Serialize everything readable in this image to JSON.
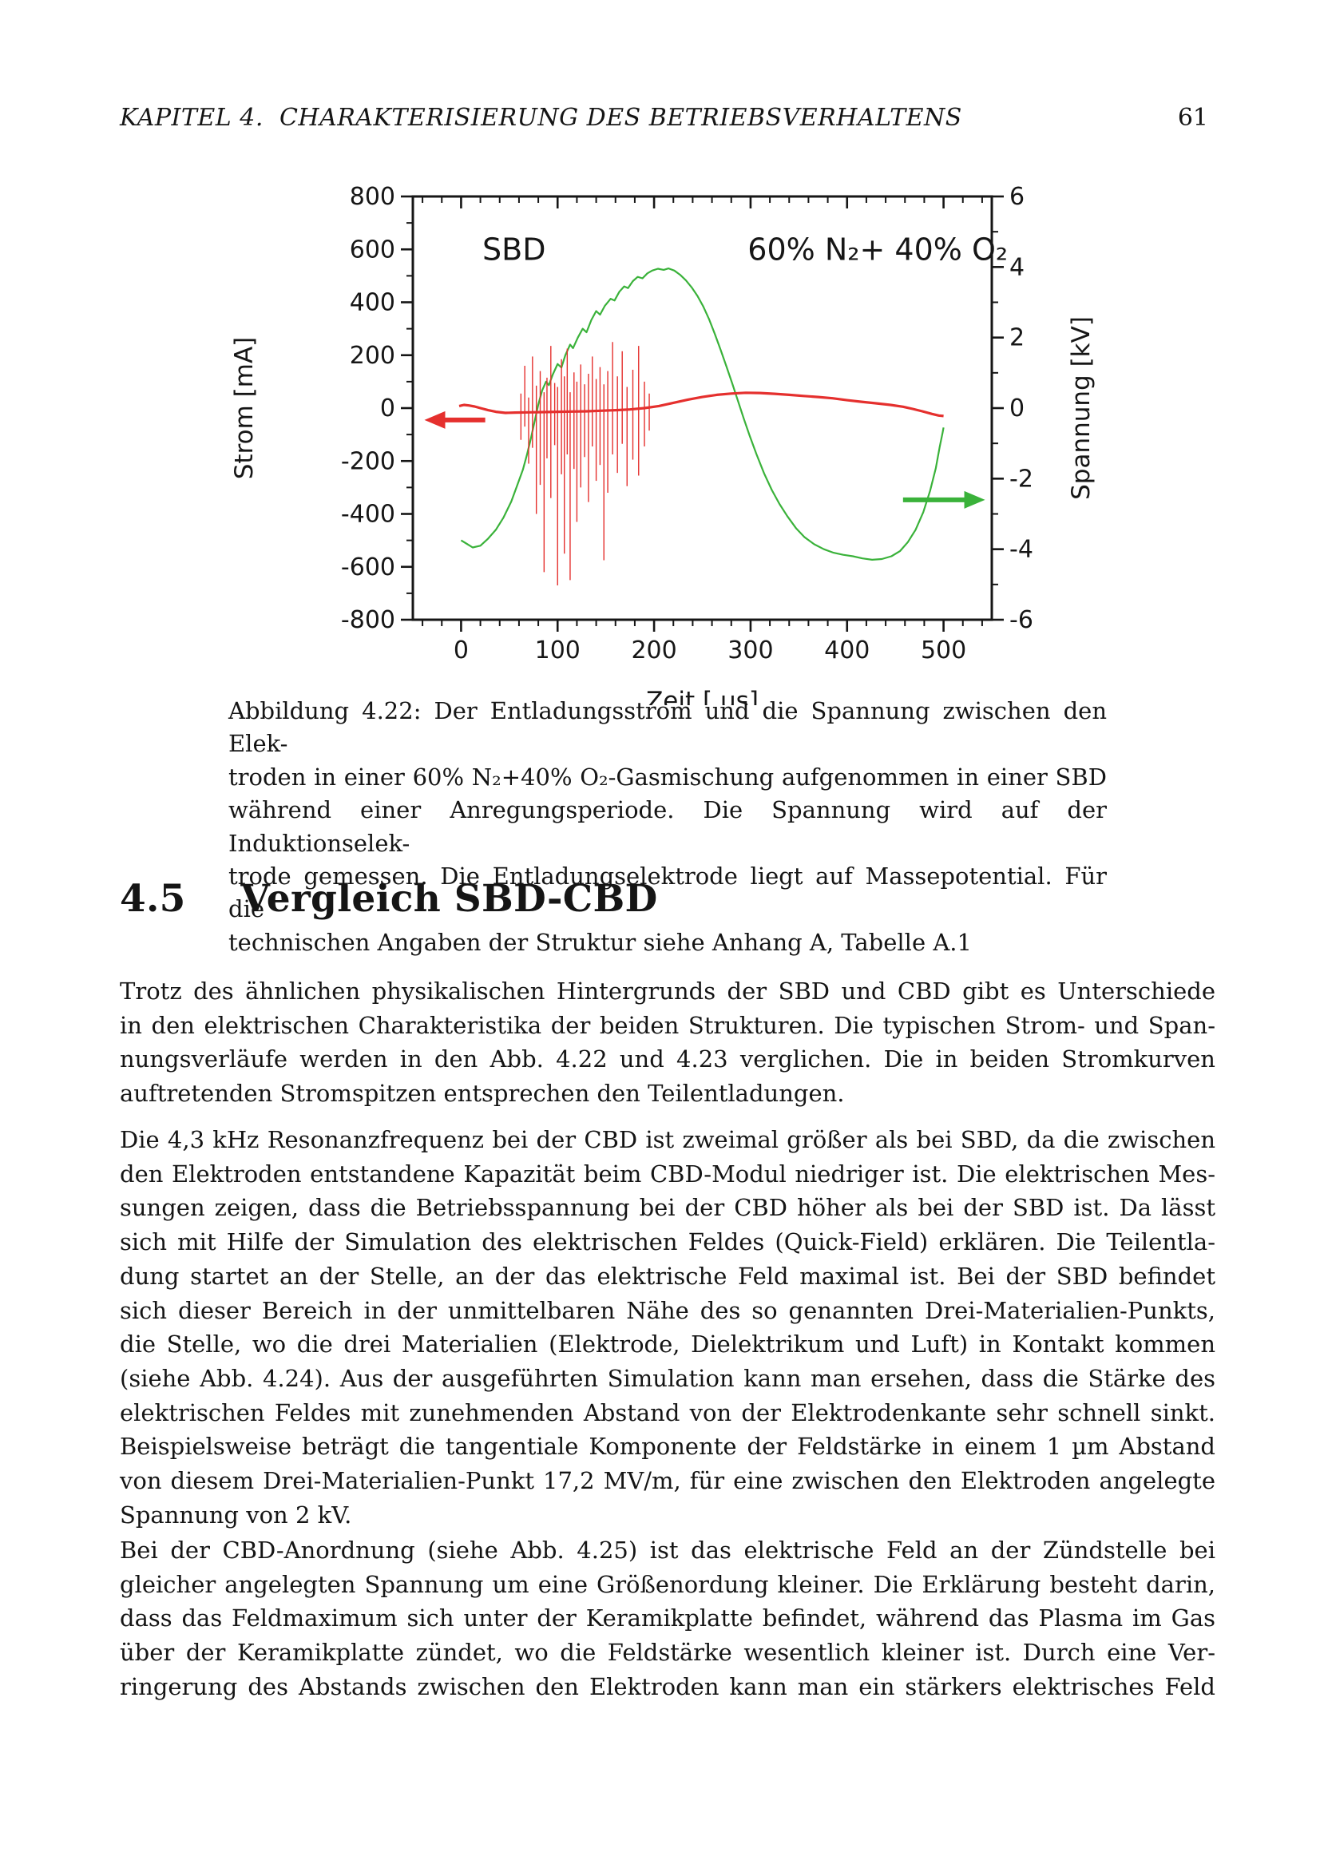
{
  "header": {
    "chapter": "KAPITEL 4.  CHARAKTERISIERUNG DES BETRIEBSVERHALTENS",
    "page_number": "61"
  },
  "figure": {
    "caption": {
      "short_last_line": true,
      "lines": [
        "Abbildung 4.22: Der Entladungsstrom und die Spannung zwischen den Elek-",
        "troden in einer 60% N₂+40% O₂-Gasmischung aufgenommen in einer SBD",
        "während einer Anregungsperiode. Die Spannung wird auf der Induktionselek-",
        "trode gemessen. Die Entladungselektrode liegt auf Massepotential. Für die",
        "technischen Angaben der Struktur siehe Anhang A, Tabelle A.1"
      ]
    }
  },
  "section": {
    "number": "4.5",
    "title": "Vergleich SBD-CBD"
  },
  "content": {
    "paragraphs": [
      {
        "short_last_line": true,
        "lines": [
          "Trotz des ähnlichen physikalischen Hintergrunds der SBD und CBD gibt es Unterschiede",
          "in den elektrischen Charakteristika der beiden Strukturen. Die typischen Strom- und Span-",
          "nungsverläufe werden in den Abb. 4.22 und 4.23 verglichen. Die in beiden Stromkurven",
          "auftretenden Stromspitzen entsprechen den Teilentladungen."
        ]
      },
      {
        "short_last_line": true,
        "lines": [
          "Die 4,3 kHz Resonanzfrequenz bei der CBD ist zweimal größer als bei SBD, da die zwischen",
          "den Elektroden entstandene Kapazität beim CBD-Modul niedriger ist. Die elektrischen Mes-",
          "sungen zeigen, dass die Betriebsspannung bei der CBD höher als bei der SBD ist. Da lässt",
          "sich mit Hilfe der Simulation des elektrischen Feldes (Quick-Field) erklären. Die Teilentla-",
          "dung startet an der Stelle, an der das elektrische Feld maximal ist. Bei der SBD befindet",
          "sich dieser Bereich in der unmittelbaren Nähe des so genannten Drei-Materialien-Punkts,",
          "die Stelle, wo die drei Materialien (Elektrode, Dielektrikum und Luft) in Kontakt kommen",
          "(siehe Abb. 4.24). Aus der ausgeführten Simulation kann man ersehen, dass die Stärke des",
          "elektrischen Feldes mit zunehmenden Abstand von der Elektrodenkante sehr schnell sinkt.",
          "Beispielsweise beträgt die tangentiale Komponente der Feldstärke in einem 1 µm Abstand",
          "von diesem Drei-Materialien-Punkt 17,2 MV/m, für eine zwischen den Elektroden angelegte",
          "Spannung von 2 kV."
        ]
      },
      {
        "short_last_line": false,
        "lines": [
          "Bei der CBD-Anordnung (siehe Abb. 4.25) ist das elektrische Feld an der Zündstelle bei",
          "gleicher angelegten Spannung um eine Größenordung kleiner. Die Erklärung besteht darin,",
          "dass das Feldmaximum sich unter der Keramikplatte befindet, während das Plasma im Gas",
          "über der Keramikplatte zündet, wo die Feldstärke wesentlich kleiner ist. Durch eine Ver-",
          "ringerung des Abstands zwischen den Elektroden kann man ein stärkers elektrisches Feld"
        ]
      }
    ]
  },
  "chart_data": {
    "type": "line",
    "title": "",
    "xlabel": "Zeit [ µs]",
    "ylabel_left": "Strom [mA]",
    "ylabel_right": "Spannung [kV]",
    "xlim": [
      -50,
      550
    ],
    "ylim_left": [
      -800,
      800
    ],
    "ylim_right": [
      -6,
      6
    ],
    "x_ticks": [
      0,
      100,
      200,
      300,
      400,
      500
    ],
    "x_minor_step": 20,
    "y_ticks_left": [
      -800,
      -600,
      -400,
      -200,
      0,
      200,
      400,
      600,
      800
    ],
    "y_minor_step_left": 100,
    "y_ticks_right": [
      -6,
      -4,
      -2,
      0,
      2,
      4,
      6
    ],
    "y_minor_step_right": 1,
    "grid": false,
    "legend": "none",
    "colors": {
      "current": "#e5302e",
      "voltage": "#3ab23a",
      "frame": "#161616"
    },
    "annotations": [
      {
        "text": "SBD",
        "t": 22,
        "v": 560
      },
      {
        "text": "60% N₂+ 40% O₂",
        "t": 297,
        "v": 560
      }
    ],
    "series": [
      {
        "name": "Spannung",
        "axis": "right",
        "color_key": "voltage",
        "width": 2.2,
        "points": [
          [
            0,
            -3.75
          ],
          [
            6,
            -3.85
          ],
          [
            12,
            -3.95
          ],
          [
            20,
            -3.9
          ],
          [
            28,
            -3.7
          ],
          [
            36,
            -3.45
          ],
          [
            44,
            -3.1
          ],
          [
            52,
            -2.65
          ],
          [
            58,
            -2.2
          ],
          [
            64,
            -1.75
          ],
          [
            68,
            -1.35
          ],
          [
            72,
            -0.9
          ],
          [
            76,
            -0.4
          ],
          [
            80,
            0.1
          ],
          [
            84,
            0.5
          ],
          [
            88,
            0.75
          ],
          [
            91,
            0.65
          ],
          [
            95,
            0.95
          ],
          [
            100,
            1.25
          ],
          [
            104,
            1.15
          ],
          [
            108,
            1.5
          ],
          [
            113,
            1.8
          ],
          [
            116,
            1.7
          ],
          [
            121,
            2.0
          ],
          [
            126,
            2.25
          ],
          [
            130,
            2.15
          ],
          [
            135,
            2.5
          ],
          [
            140,
            2.75
          ],
          [
            144,
            2.65
          ],
          [
            149,
            2.9
          ],
          [
            155,
            3.1
          ],
          [
            159,
            3.05
          ],
          [
            164,
            3.3
          ],
          [
            169,
            3.45
          ],
          [
            173,
            3.4
          ],
          [
            178,
            3.6
          ],
          [
            183,
            3.72
          ],
          [
            188,
            3.68
          ],
          [
            193,
            3.82
          ],
          [
            198,
            3.9
          ],
          [
            204,
            3.95
          ],
          [
            210,
            3.92
          ],
          [
            215,
            3.96
          ],
          [
            221,
            3.9
          ],
          [
            227,
            3.78
          ],
          [
            233,
            3.62
          ],
          [
            239,
            3.42
          ],
          [
            245,
            3.18
          ],
          [
            251,
            2.88
          ],
          [
            257,
            2.52
          ],
          [
            263,
            2.1
          ],
          [
            269,
            1.65
          ],
          [
            275,
            1.18
          ],
          [
            281,
            0.7
          ],
          [
            287,
            0.2
          ],
          [
            293,
            -0.3
          ],
          [
            299,
            -0.78
          ],
          [
            306,
            -1.3
          ],
          [
            314,
            -1.85
          ],
          [
            322,
            -2.32
          ],
          [
            330,
            -2.72
          ],
          [
            338,
            -3.06
          ],
          [
            347,
            -3.4
          ],
          [
            356,
            -3.66
          ],
          [
            366,
            -3.86
          ],
          [
            376,
            -4.0
          ],
          [
            386,
            -4.1
          ],
          [
            396,
            -4.16
          ],
          [
            406,
            -4.2
          ],
          [
            416,
            -4.26
          ],
          [
            426,
            -4.3
          ],
          [
            436,
            -4.28
          ],
          [
            446,
            -4.2
          ],
          [
            455,
            -4.05
          ],
          [
            463,
            -3.8
          ],
          [
            471,
            -3.45
          ],
          [
            479,
            -2.95
          ],
          [
            486,
            -2.35
          ],
          [
            492,
            -1.7
          ],
          [
            496,
            -1.1
          ],
          [
            499,
            -0.7
          ],
          [
            500,
            -0.55
          ]
        ]
      },
      {
        "name": "Strom",
        "axis": "left",
        "color_key": "current",
        "width": 3.2,
        "points": [
          [
            -2,
            8
          ],
          [
            3,
            12
          ],
          [
            8,
            10
          ],
          [
            14,
            6
          ],
          [
            20,
            0
          ],
          [
            28,
            -8
          ],
          [
            36,
            -14
          ],
          [
            46,
            -18
          ],
          [
            56,
            -17
          ],
          [
            70,
            -16
          ],
          [
            85,
            -15
          ],
          [
            100,
            -14
          ],
          [
            115,
            -13
          ],
          [
            130,
            -12
          ],
          [
            145,
            -10
          ],
          [
            160,
            -8
          ],
          [
            175,
            -5
          ],
          [
            190,
            0
          ],
          [
            205,
            8
          ],
          [
            220,
            20
          ],
          [
            235,
            32
          ],
          [
            250,
            42
          ],
          [
            265,
            50
          ],
          [
            280,
            55
          ],
          [
            295,
            58
          ],
          [
            310,
            57
          ],
          [
            325,
            54
          ],
          [
            340,
            50
          ],
          [
            355,
            46
          ],
          [
            370,
            42
          ],
          [
            385,
            37
          ],
          [
            400,
            30
          ],
          [
            415,
            24
          ],
          [
            430,
            18
          ],
          [
            445,
            12
          ],
          [
            458,
            5
          ],
          [
            468,
            -3
          ],
          [
            478,
            -12
          ],
          [
            488,
            -22
          ],
          [
            495,
            -28
          ],
          [
            500,
            -30
          ]
        ],
        "spikes": [
          [
            62,
            -120,
            55
          ],
          [
            66,
            -70,
            160
          ],
          [
            70,
            -210,
            40
          ],
          [
            74,
            -150,
            195
          ],
          [
            78,
            -400,
            85
          ],
          [
            82,
            -290,
            140
          ],
          [
            86,
            -620,
            60
          ],
          [
            89,
            -190,
            115
          ],
          [
            93,
            -340,
            235
          ],
          [
            97,
            -140,
            95
          ],
          [
            100,
            -670,
            80
          ],
          [
            104,
            -250,
            185
          ],
          [
            107,
            -550,
            120
          ],
          [
            110,
            -175,
            225
          ],
          [
            113,
            -650,
            60
          ],
          [
            117,
            -230,
            135
          ],
          [
            120,
            -430,
            100
          ],
          [
            124,
            -300,
            165
          ],
          [
            128,
            -185,
            90
          ],
          [
            132,
            -355,
            130
          ],
          [
            136,
            -145,
            195
          ],
          [
            140,
            -275,
            110
          ],
          [
            144,
            -215,
            155
          ],
          [
            148,
            -575,
            90
          ],
          [
            152,
            -320,
            140
          ],
          [
            157,
            -175,
            250
          ],
          [
            162,
            -245,
            120
          ],
          [
            167,
            -135,
            215
          ],
          [
            172,
            -295,
            80
          ],
          [
            178,
            -195,
            145
          ],
          [
            184,
            -255,
            235
          ],
          [
            190,
            -145,
            100
          ],
          [
            195,
            -85,
            55
          ]
        ]
      }
    ],
    "arrows": [
      {
        "name": "current-axis-arrow",
        "axis": "left",
        "color_key": "current",
        "y": -45,
        "x_from": 25,
        "x_to": -38
      },
      {
        "name": "voltage-axis-arrow",
        "axis": "right",
        "color_key": "voltage",
        "y": -2.6,
        "x_from": 458,
        "x_to": 543
      }
    ]
  }
}
